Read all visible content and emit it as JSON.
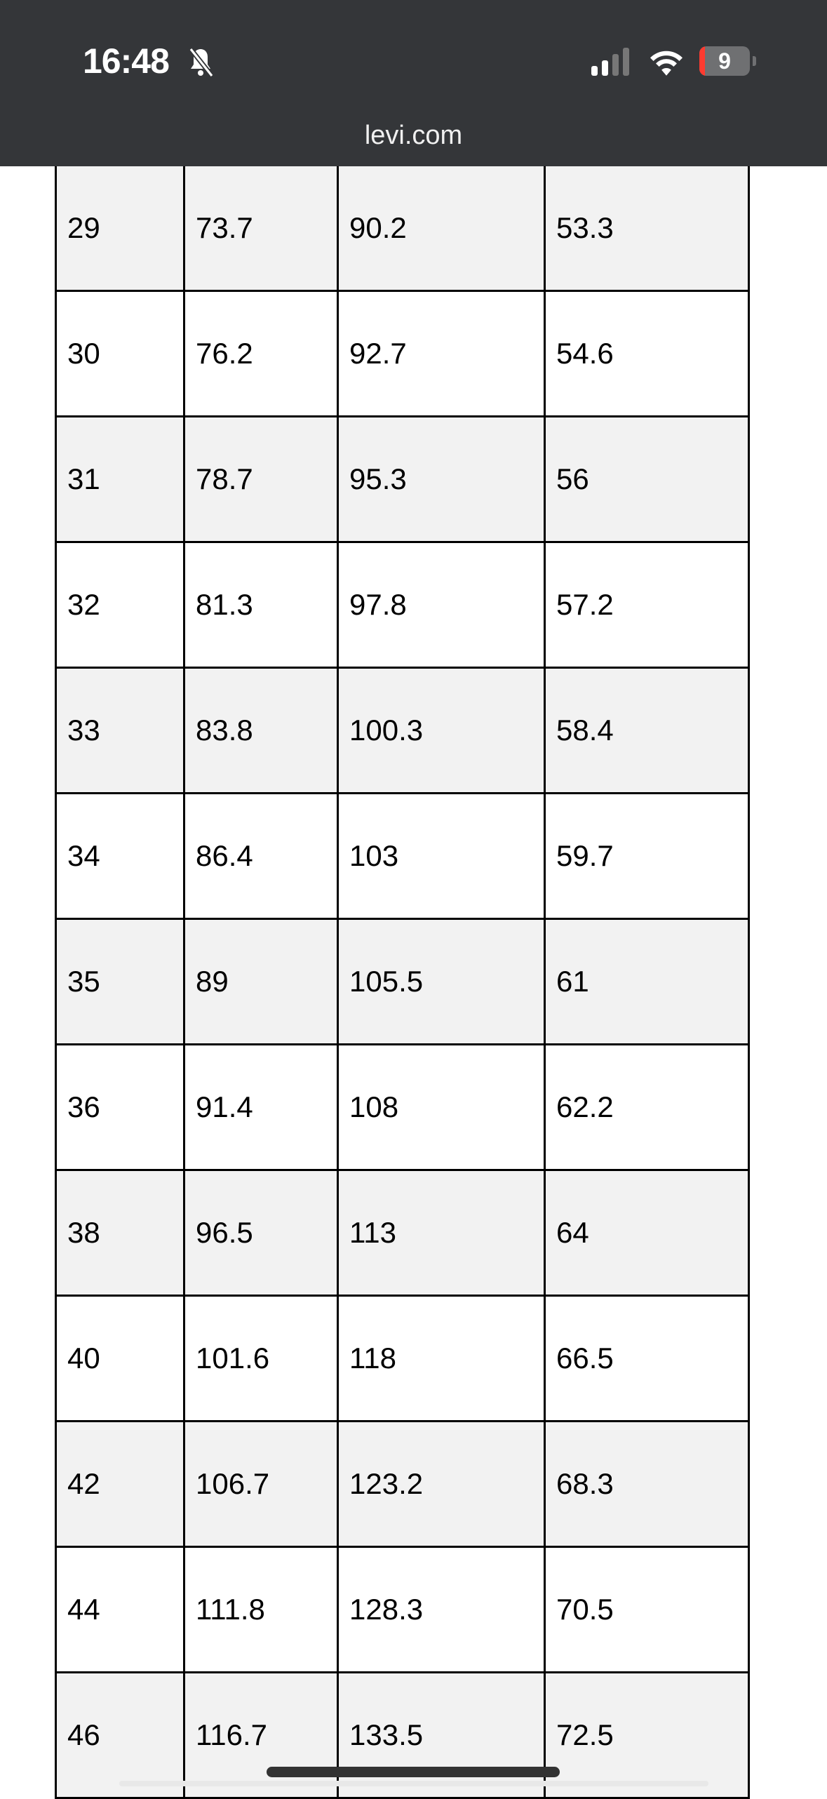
{
  "status_bar": {
    "time": "16:48",
    "battery": "9",
    "icons": [
      "bell-slash-icon",
      "signal-icon",
      "wifi-icon",
      "battery-icon"
    ]
  },
  "browser": {
    "url": "levi.com"
  },
  "table": {
    "rows": [
      [
        "29",
        "73.7",
        "90.2",
        "53.3"
      ],
      [
        "30",
        "76.2",
        "92.7",
        "54.6"
      ],
      [
        "31",
        "78.7",
        "95.3",
        "56"
      ],
      [
        "32",
        "81.3",
        "97.8",
        "57.2"
      ],
      [
        "33",
        "83.8",
        "100.3",
        "58.4"
      ],
      [
        "34",
        "86.4",
        "103",
        "59.7"
      ],
      [
        "35",
        "89",
        "105.5",
        "61"
      ],
      [
        "36",
        "91.4",
        "108",
        "62.2"
      ],
      [
        "38",
        "96.5",
        "113",
        "64"
      ],
      [
        "40",
        "101.6",
        "118",
        "66.5"
      ],
      [
        "42",
        "106.7",
        "123.2",
        "68.3"
      ],
      [
        "44",
        "111.8",
        "128.3",
        "70.5"
      ],
      [
        "46",
        "116.7",
        "133.5",
        "72.5"
      ]
    ]
  }
}
